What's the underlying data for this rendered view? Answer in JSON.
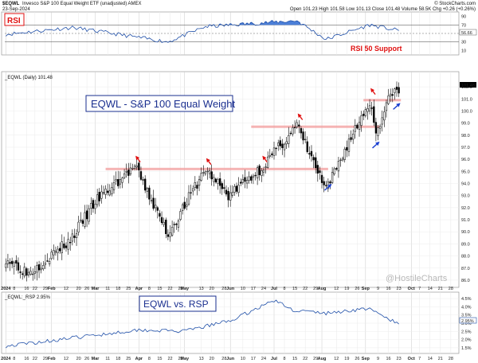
{
  "header": {
    "symbol": "$EQWL",
    "description": "Invesco S&P 100 Equal Weight ETF (unadjusted)  AMEX",
    "date": "23-Sep-2024",
    "source": "© StockCharts.com",
    "ohlc_text": "Open 101.23  High 101.58  Low 101.13  Close 101.48  Volume 58.5K  Chg +0.26 (+0.26%)"
  },
  "rsi_panel": {
    "label": "RSI",
    "support_label": "RSI 50 Support",
    "ticks": [
      "90",
      "70",
      "50",
      "30",
      "10"
    ],
    "value_badge": "56.66",
    "levels": [
      70,
      50,
      30
    ],
    "colors": {
      "line": "#1f4fa8",
      "overbought_fill": "#4b7fd8",
      "support_text": "#e01010",
      "label_text": "#e01010"
    }
  },
  "price_panel": {
    "legend": "_EQWL (Daily) 101.48",
    "title": "EQWL - S&P 100 Equal Weight",
    "last_price_badge": "101.48",
    "y_range": [
      85.6,
      102.6
    ],
    "y_ticks": [
      "102.0",
      "101.0",
      "100.0",
      "99.0",
      "98.0",
      "97.0",
      "96.0",
      "95.0",
      "94.0",
      "93.0",
      "92.0",
      "91.0",
      "90.0",
      "89.0",
      "88.0",
      "87.0",
      "86.0"
    ],
    "resistance_levels": [
      {
        "value": 95.2,
        "start_session": 48,
        "end_session": 155
      },
      {
        "value": 98.7,
        "start_session": 118,
        "end_session": 180
      },
      {
        "value": 100.9,
        "start_session": 172,
        "end_session": 190
      }
    ],
    "colors": {
      "up": "#ffffff",
      "down": "#000000",
      "wick": "#000000",
      "resistance": "#f2a0a0",
      "red_arrow": "#e01010",
      "blue_arrow": "#1a3fd0"
    }
  },
  "watermark": "@HostileCharts",
  "bottom_panel": {
    "label": "EQWL vs. RSP",
    "legend": "_EQWL:_RSP 2.95%",
    "y_ticks": [
      "4.5%",
      "4.0%",
      "3.5%",
      "3.0%",
      "2.5%",
      "2.0%",
      "1.5%"
    ],
    "value_badge": "2.95%",
    "colors": {
      "line": "#1f4fa8",
      "badge": "#1f4fa8"
    }
  },
  "x_axis": {
    "labels": [
      "2024",
      "8",
      "16",
      "22",
      "29",
      "Feb",
      "12",
      "20",
      "26",
      "Mar",
      "11",
      "18",
      "25",
      "Apr",
      "8",
      "15",
      "22",
      "29",
      "May",
      "13",
      "20",
      "28",
      "Jun",
      "10",
      "17",
      "24",
      "Jul",
      "8",
      "15",
      "22",
      "29",
      "Aug",
      "12",
      "19",
      "26",
      "Sep",
      "9",
      "16",
      "23",
      "Oct",
      "7",
      "14",
      "21",
      "28"
    ]
  },
  "chart_data": {
    "type": "candlestick",
    "title": "EQWL - S&P 100 Equal Weight",
    "series_name": "_EQWL (Daily)",
    "x_start_date": "2024-01-02",
    "x_end_date": "2024-09-23",
    "key_points": [
      {
        "date": "2024-01-02",
        "close": 87.8
      },
      {
        "date": "2024-01-17",
        "close": 86.6
      },
      {
        "date": "2024-02-14",
        "close": 89.3
      },
      {
        "date": "2024-03-01",
        "close": 92.5
      },
      {
        "date": "2024-03-28",
        "close": 95.4
      },
      {
        "date": "2024-04-19",
        "close": 89.8
      },
      {
        "date": "2024-05-15",
        "close": 95.2
      },
      {
        "date": "2024-05-30",
        "close": 93.0
      },
      {
        "date": "2024-06-21",
        "close": 95.3
      },
      {
        "date": "2024-07-16",
        "close": 98.8
      },
      {
        "date": "2024-08-05",
        "close": 93.4
      },
      {
        "date": "2024-08-20",
        "close": 97.5
      },
      {
        "date": "2024-09-03",
        "close": 100.8
      },
      {
        "date": "2024-09-06",
        "close": 98.3
      },
      {
        "date": "2024-09-18",
        "close": 101.7
      },
      {
        "date": "2024-09-23",
        "close": 101.48
      }
    ],
    "ratio_key_points": [
      {
        "date": "2024-01-02",
        "value": 1.6
      },
      {
        "date": "2024-02-15",
        "value": 2.1
      },
      {
        "date": "2024-04-01",
        "value": 2.6
      },
      {
        "date": "2024-05-01",
        "value": 2.5
      },
      {
        "date": "2024-06-03",
        "value": 3.2
      },
      {
        "date": "2024-07-01",
        "value": 4.4
      },
      {
        "date": "2024-07-12",
        "value": 3.8
      },
      {
        "date": "2024-08-05",
        "value": 3.6
      },
      {
        "date": "2024-09-02",
        "value": 3.9
      },
      {
        "date": "2024-09-23",
        "value": 2.95
      }
    ],
    "rsi_key_points": [
      {
        "date": "2024-01-02",
        "value": 48
      },
      {
        "date": "2024-02-15",
        "value": 64
      },
      {
        "date": "2024-04-19",
        "value": 30
      },
      {
        "date": "2024-05-15",
        "value": 66
      },
      {
        "date": "2024-07-16",
        "value": 80
      },
      {
        "date": "2024-08-05",
        "value": 36
      },
      {
        "date": "2024-09-03",
        "value": 70
      },
      {
        "date": "2024-09-23",
        "value": 56.66
      }
    ],
    "ylim": [
      85.6,
      102.6
    ]
  }
}
